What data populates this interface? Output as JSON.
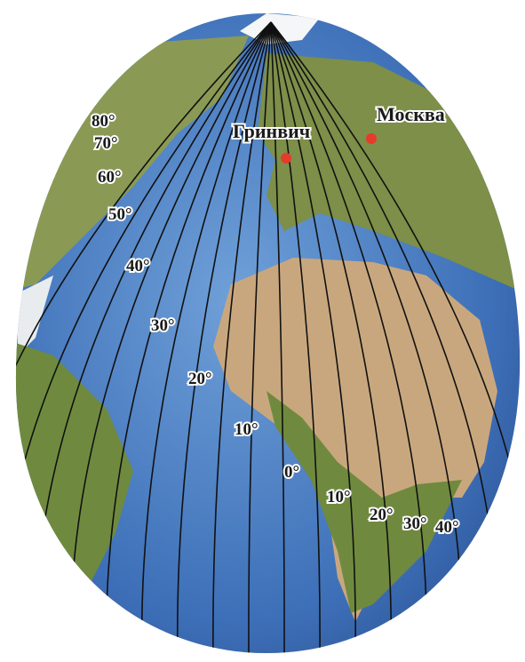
{
  "places": [
    {
      "label": "Гринвич"
    },
    {
      "label": "Москва"
    }
  ],
  "meridian_labels": [
    "80°",
    "70°",
    "60°",
    "50°",
    "40°",
    "30°",
    "20°",
    "10°",
    "0°",
    "10°",
    "20°",
    "30°",
    "40°"
  ]
}
